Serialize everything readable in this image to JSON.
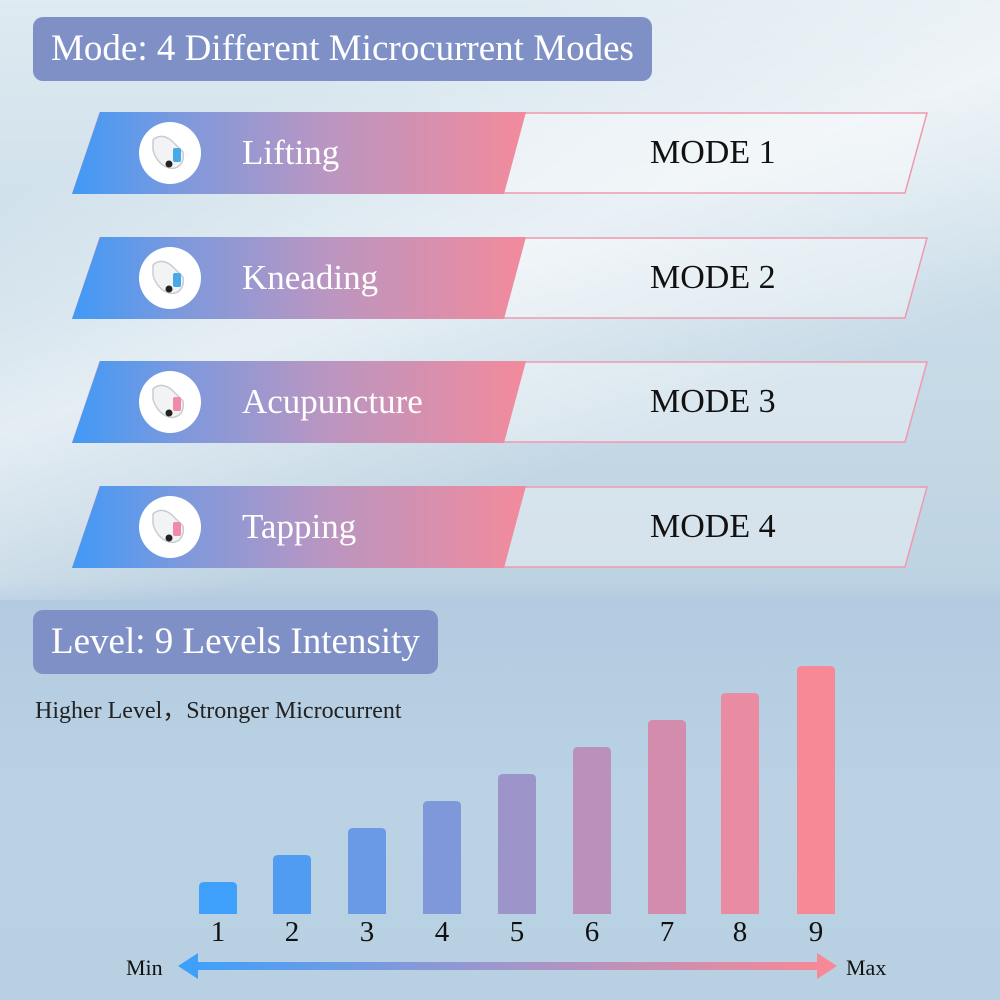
{
  "modes_section": {
    "title": "Mode: 4 Different Microcurrent Modes",
    "rows": [
      {
        "name": "Lifting",
        "mode": "MODE 1",
        "icon": "face-lifting-device-icon",
        "accent": "#49a9e8"
      },
      {
        "name": "Kneading",
        "mode": "MODE 2",
        "icon": "face-lifting-device-icon",
        "accent": "#49a9e8"
      },
      {
        "name": "Acupuncture",
        "mode": "MODE 3",
        "icon": "face-lifting-device-icon",
        "accent": "#f08aa8"
      },
      {
        "name": "Tapping",
        "mode": "MODE 4",
        "icon": "face-lifting-device-icon",
        "accent": "#f08aa8"
      }
    ]
  },
  "levels_section": {
    "title": "Level: 9 Levels Intensity",
    "subtitle": "Higher Level，Stronger Microcurrent",
    "min_label": "Min",
    "max_label": "Max"
  },
  "chart_data": {
    "type": "bar",
    "categories": [
      "1",
      "2",
      "3",
      "4",
      "5",
      "6",
      "7",
      "8",
      "9"
    ],
    "values": [
      1,
      2,
      3,
      4,
      5,
      6,
      7,
      8,
      9
    ],
    "colors": [
      "#3fa0fb",
      "#4f9cf2",
      "#6a9ae6",
      "#7f98da",
      "#9d94c9",
      "#bb90b9",
      "#d38cab",
      "#e98ba1",
      "#f78896"
    ],
    "gradient_start": "#3fa0fb",
    "gradient_end": "#f78896"
  }
}
